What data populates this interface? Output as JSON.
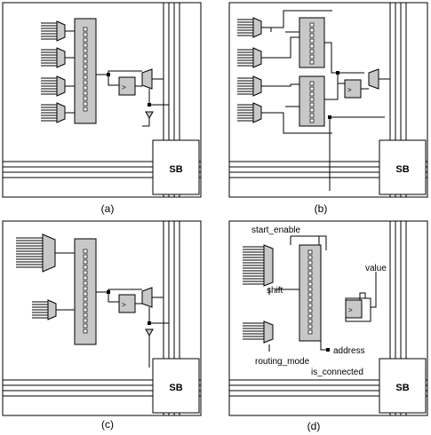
{
  "panels": {
    "a": {
      "caption": "(a)",
      "sb_label": "SB"
    },
    "b": {
      "caption": "(b)",
      "sb_label": "SB"
    },
    "c": {
      "caption": "(c)",
      "sb_label": "SB"
    },
    "d": {
      "caption": "(d)",
      "sb_label": "SB",
      "labels": {
        "start_enable": "start_enable",
        "shift": "shift",
        "routing_mode": "routing_mode",
        "address": "address",
        "value": "value",
        "is_connected": "is_connected"
      }
    }
  },
  "colors": {
    "line": "#000000",
    "fill": "#c8c8c8",
    "bg": "#ffffff"
  },
  "glyphs": {
    "ff_marker": ">"
  }
}
